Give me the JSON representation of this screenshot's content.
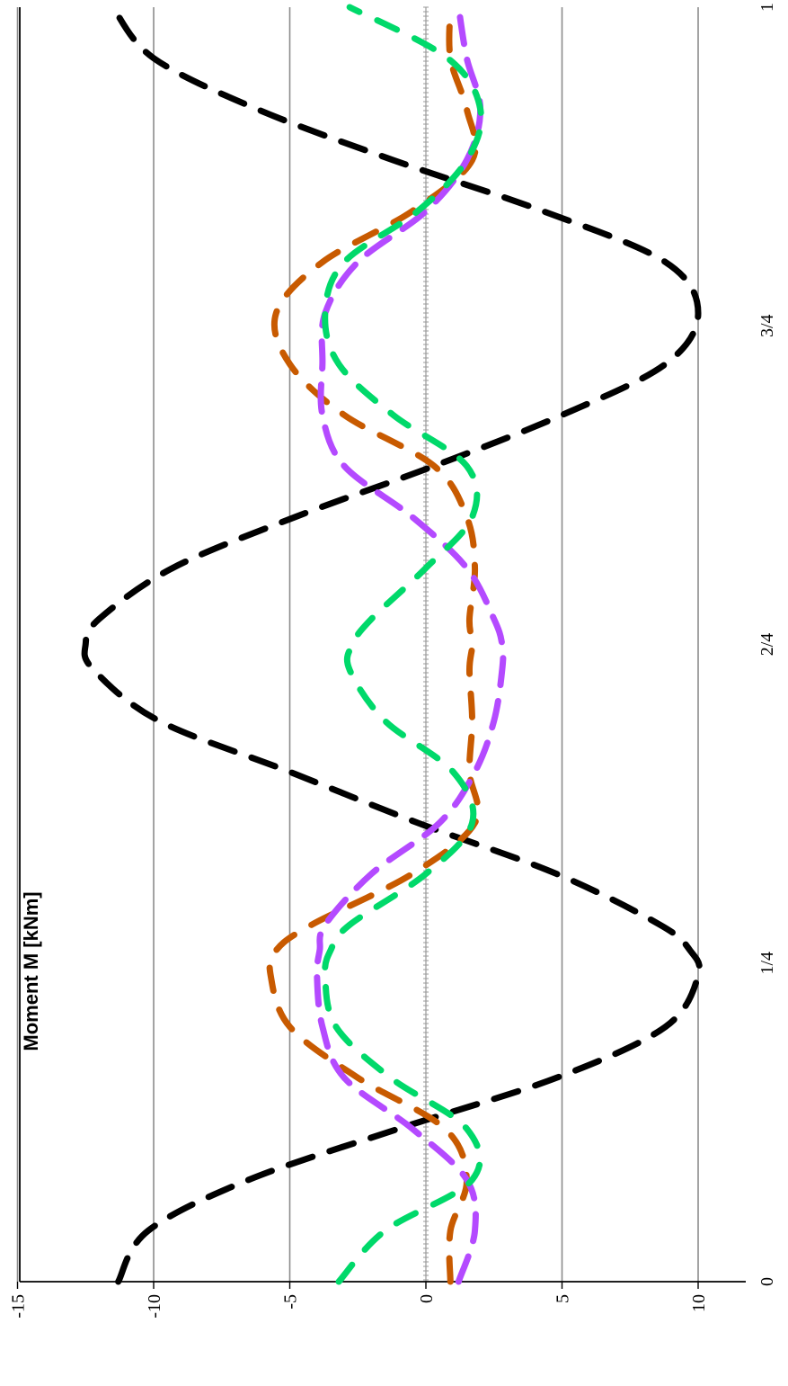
{
  "chart_data": {
    "type": "line",
    "xlabel": "",
    "ylabel": "Moment M [kNm]",
    "x_ticks": [
      "0",
      "1/4",
      "2/4",
      "3/4",
      "1"
    ],
    "y_ticks": [
      -15,
      -10,
      -5,
      0,
      5,
      10
    ],
    "ylim": [
      -15,
      12
    ],
    "xlim": [
      0,
      1
    ],
    "grid": true,
    "series": [
      {
        "color": "#000000",
        "line_style": "dashed",
        "x": [
          0,
          0.04,
          0.08,
          0.12,
          0.16,
          0.2,
          0.24,
          0.26,
          0.28,
          0.32,
          0.36,
          0.4,
          0.44,
          0.48,
          0.5,
          0.52,
          0.56,
          0.6,
          0.64,
          0.68,
          0.72,
          0.76,
          0.8,
          0.84,
          0.88,
          0.92,
          0.96,
          1.0
        ],
        "y": [
          -11.3,
          -10.2,
          -6.5,
          -1.0,
          4.8,
          8.8,
          10.0,
          9.7,
          8.6,
          4.8,
          -0.3,
          -5.0,
          -9.8,
          -12.2,
          -12.5,
          -12.0,
          -9.3,
          -4.8,
          0.3,
          5.0,
          8.8,
          10.0,
          8.8,
          4.3,
          -1.2,
          -6.2,
          -10.0,
          -11.5
        ]
      },
      {
        "color": "#c85a00",
        "line_style": "dashed",
        "x": [
          0,
          0.04,
          0.08,
          0.12,
          0.16,
          0.2,
          0.24,
          0.26,
          0.28,
          0.32,
          0.36,
          0.4,
          0.44,
          0.48,
          0.5,
          0.52,
          0.56,
          0.6,
          0.64,
          0.68,
          0.72,
          0.76,
          0.8,
          0.84,
          0.88,
          0.92,
          0.96,
          1.0
        ],
        "y": [
          0.9,
          0.9,
          1.5,
          0.7,
          -2.5,
          -5.0,
          -5.7,
          -5.5,
          -4.2,
          -0.5,
          1.8,
          1.6,
          1.7,
          1.6,
          1.7,
          1.6,
          1.8,
          1.5,
          0.3,
          -3.0,
          -5.0,
          -5.5,
          -3.8,
          -0.5,
          1.7,
          1.5,
          0.9,
          0.9
        ]
      },
      {
        "color": "#b44aff",
        "line_style": "dashed",
        "x": [
          0,
          0.04,
          0.08,
          0.12,
          0.16,
          0.2,
          0.24,
          0.26,
          0.28,
          0.32,
          0.36,
          0.4,
          0.44,
          0.48,
          0.5,
          0.52,
          0.56,
          0.6,
          0.64,
          0.68,
          0.72,
          0.76,
          0.8,
          0.84,
          0.88,
          0.92,
          0.96,
          1.0
        ],
        "y": [
          1.2,
          1.8,
          1.5,
          -0.5,
          -3.0,
          -3.8,
          -4.0,
          -3.9,
          -3.7,
          -2.0,
          0.5,
          1.8,
          2.5,
          2.8,
          2.8,
          2.5,
          1.5,
          -0.5,
          -3.0,
          -3.8,
          -3.8,
          -3.7,
          -2.5,
          0.0,
          1.5,
          2.0,
          1.5,
          1.2
        ]
      },
      {
        "color": "#00d96a",
        "line_style": "dashed",
        "x": [
          0,
          0.04,
          0.08,
          0.12,
          0.16,
          0.2,
          0.24,
          0.26,
          0.28,
          0.32,
          0.36,
          0.4,
          0.44,
          0.48,
          0.5,
          0.52,
          0.56,
          0.6,
          0.64,
          0.68,
          0.72,
          0.76,
          0.8,
          0.84,
          0.88,
          0.92,
          0.96,
          1.0
        ],
        "y": [
          -3.2,
          -1.5,
          1.7,
          1.5,
          -1.3,
          -3.3,
          -3.7,
          -3.5,
          -2.8,
          0.0,
          1.7,
          1.0,
          -1.5,
          -2.8,
          -2.7,
          -2.0,
          0.0,
          1.7,
          1.5,
          -1.2,
          -3.2,
          -3.7,
          -3.0,
          -0.3,
          1.5,
          2.0,
          0.8,
          -2.8
        ]
      }
    ]
  }
}
